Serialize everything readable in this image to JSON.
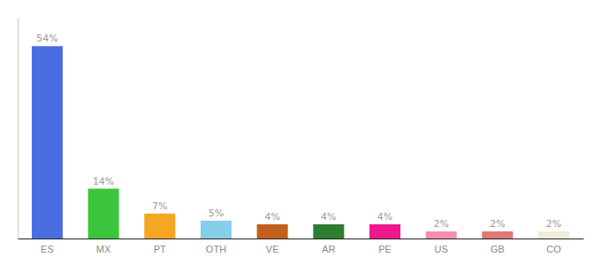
{
  "chart_data": {
    "type": "bar",
    "categories": [
      "ES",
      "MX",
      "PT",
      "OTH",
      "VE",
      "AR",
      "PE",
      "US",
      "GB",
      "CO"
    ],
    "values": [
      54,
      14,
      7,
      5,
      4,
      4,
      4,
      2,
      2,
      2
    ],
    "value_labels": [
      "54%",
      "14%",
      "7%",
      "5%",
      "4%",
      "4%",
      "4%",
      "2%",
      "2%",
      "2%"
    ],
    "colors": [
      "#4a6ee0",
      "#3cc43c",
      "#f5a623",
      "#87ceeb",
      "#c1601a",
      "#2e7d32",
      "#f0198c",
      "#f48fb1",
      "#e07878",
      "#f0ecd5"
    ],
    "ylim": [
      0,
      62
    ],
    "data_labels": true,
    "tick_labels": "x"
  }
}
